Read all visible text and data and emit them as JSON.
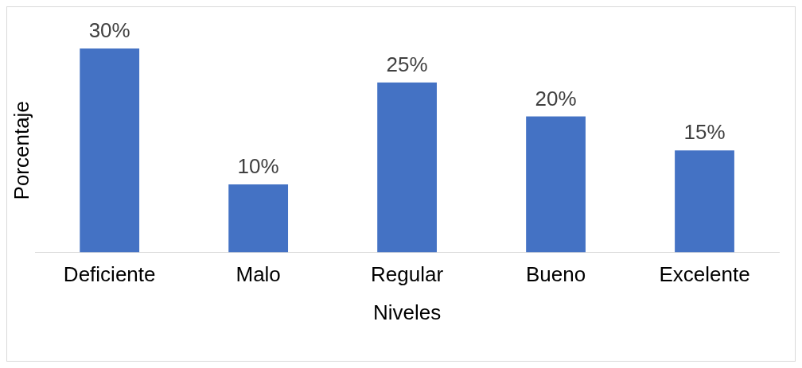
{
  "chart_data": {
    "type": "bar",
    "xlabel": "Niveles",
    "ylabel": "Porcentaje",
    "categories": [
      "Deficiente",
      "Malo",
      "Regular",
      "Bueno",
      "Excelente"
    ],
    "values": [
      30,
      10,
      25,
      20,
      15
    ],
    "value_labels": [
      "30%",
      "10%",
      "25%",
      "20%",
      "15%"
    ],
    "color": "#4472c4",
    "grid": false,
    "legend": false,
    "tick_labels": "x"
  }
}
